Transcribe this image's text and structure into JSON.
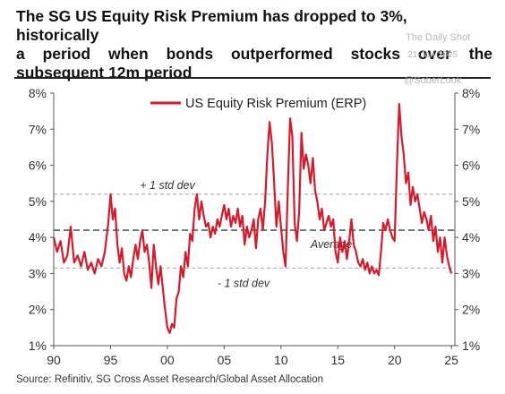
{
  "header": {
    "title_line1": "The SG US Equity Risk Premium has dropped to 3%, historically",
    "title_line2": "a period when bonds outperformed stocks over the",
    "title_line3": "subsequent 12m period"
  },
  "watermarks": {
    "site": "The Daily Shot",
    "date": "21-Jan-2025",
    "handle": "@SoberLook"
  },
  "footer": {
    "source": "Source: Refinitiv, SG Cross Asset Research/Global Asset Allocation"
  },
  "colors": {
    "series": "#d7192a",
    "std_lines": "#b9b9b9",
    "average_line": "#4f6460",
    "axis": "#555555"
  },
  "chart_data": {
    "type": "line",
    "title": "",
    "xlabel": "",
    "ylabel": "",
    "xlim": [
      1990,
      2025.3
    ],
    "ylim": [
      1,
      8
    ],
    "x_ticks": [
      1990,
      1995,
      2000,
      2005,
      2010,
      2015,
      2020,
      2025
    ],
    "x_tick_labels": [
      "90",
      "95",
      "00",
      "05",
      "10",
      "15",
      "20",
      "25"
    ],
    "y_ticks": [
      1,
      2,
      3,
      4,
      5,
      6,
      7,
      8
    ],
    "y_tick_labels": [
      "1%",
      "2%",
      "3%",
      "4%",
      "5%",
      "6%",
      "7%",
      "8%"
    ],
    "grid": false,
    "legend": {
      "placement": "top-center",
      "entries": [
        "US Equity Risk Premium (ERP)"
      ]
    },
    "reference_lines": [
      {
        "label": "+ 1 std dev",
        "value": 5.2,
        "style": "dashed"
      },
      {
        "label": "Average",
        "value": 4.2,
        "style": "dashed"
      },
      {
        "label": "- 1 std dev",
        "value": 3.15,
        "style": "dashed"
      }
    ],
    "series": [
      {
        "name": "US Equity Risk Premium (ERP)",
        "points": [
          [
            1990.0,
            4.0
          ],
          [
            1990.3,
            3.6
          ],
          [
            1990.6,
            3.9
          ],
          [
            1990.9,
            3.3
          ],
          [
            1991.2,
            3.5
          ],
          [
            1991.5,
            4.3
          ],
          [
            1991.8,
            3.3
          ],
          [
            1992.1,
            3.5
          ],
          [
            1992.4,
            3.2
          ],
          [
            1992.7,
            3.6
          ],
          [
            1993.0,
            3.1
          ],
          [
            1993.3,
            3.3
          ],
          [
            1993.6,
            3.0
          ],
          [
            1993.9,
            3.4
          ],
          [
            1994.2,
            3.2
          ],
          [
            1994.5,
            3.6
          ],
          [
            1994.8,
            4.4
          ],
          [
            1995.0,
            5.2
          ],
          [
            1995.2,
            4.5
          ],
          [
            1995.4,
            4.8
          ],
          [
            1995.6,
            3.8
          ],
          [
            1995.8,
            3.3
          ],
          [
            1996.0,
            3.7
          ],
          [
            1996.2,
            3.0
          ],
          [
            1996.4,
            2.8
          ],
          [
            1996.6,
            3.2
          ],
          [
            1996.8,
            2.9
          ],
          [
            1997.0,
            3.4
          ],
          [
            1997.2,
            3.8
          ],
          [
            1997.4,
            3.4
          ],
          [
            1997.6,
            3.9
          ],
          [
            1997.8,
            4.2
          ],
          [
            1998.0,
            3.6
          ],
          [
            1998.2,
            3.8
          ],
          [
            1998.4,
            3.3
          ],
          [
            1998.6,
            2.6
          ],
          [
            1998.8,
            3.8
          ],
          [
            1999.0,
            3.2
          ],
          [
            1999.2,
            2.7
          ],
          [
            1999.4,
            3.2
          ],
          [
            1999.6,
            2.6
          ],
          [
            1999.8,
            2.0
          ],
          [
            2000.0,
            1.5
          ],
          [
            2000.2,
            1.35
          ],
          [
            2000.4,
            1.6
          ],
          [
            2000.6,
            1.5
          ],
          [
            2000.8,
            2.3
          ],
          [
            2001.0,
            2.5
          ],
          [
            2001.2,
            3.2
          ],
          [
            2001.4,
            2.9
          ],
          [
            2001.6,
            3.6
          ],
          [
            2001.8,
            3.2
          ],
          [
            2002.0,
            4.1
          ],
          [
            2002.2,
            3.9
          ],
          [
            2002.4,
            4.8
          ],
          [
            2002.6,
            5.2
          ],
          [
            2002.8,
            4.5
          ],
          [
            2003.0,
            5.0
          ],
          [
            2003.2,
            4.6
          ],
          [
            2003.4,
            4.3
          ],
          [
            2003.6,
            4.4
          ],
          [
            2003.8,
            4.0
          ],
          [
            2004.0,
            4.3
          ],
          [
            2004.2,
            4.1
          ],
          [
            2004.4,
            4.5
          ],
          [
            2004.6,
            4.3
          ],
          [
            2004.8,
            4.6
          ],
          [
            2005.0,
            4.9
          ],
          [
            2005.2,
            4.5
          ],
          [
            2005.4,
            4.8
          ],
          [
            2005.6,
            4.3
          ],
          [
            2005.8,
            4.6
          ],
          [
            2006.0,
            4.4
          ],
          [
            2006.2,
            4.8
          ],
          [
            2006.4,
            4.3
          ],
          [
            2006.6,
            4.6
          ],
          [
            2006.8,
            3.8
          ],
          [
            2007.0,
            4.3
          ],
          [
            2007.2,
            4.0
          ],
          [
            2007.4,
            4.2
          ],
          [
            2007.6,
            4.5
          ],
          [
            2007.8,
            3.7
          ],
          [
            2008.0,
            4.5
          ],
          [
            2008.2,
            4.8
          ],
          [
            2008.4,
            4.2
          ],
          [
            2008.6,
            5.0
          ],
          [
            2008.8,
            6.3
          ],
          [
            2009.0,
            7.2
          ],
          [
            2009.2,
            6.6
          ],
          [
            2009.4,
            5.5
          ],
          [
            2009.6,
            4.3
          ],
          [
            2009.8,
            5.0
          ],
          [
            2010.0,
            4.3
          ],
          [
            2010.2,
            3.6
          ],
          [
            2010.4,
            3.2
          ],
          [
            2010.6,
            5.3
          ],
          [
            2010.8,
            7.3
          ],
          [
            2011.0,
            6.8
          ],
          [
            2011.2,
            4.4
          ],
          [
            2011.4,
            3.9
          ],
          [
            2011.6,
            4.7
          ],
          [
            2011.8,
            6.9
          ],
          [
            2012.0,
            5.9
          ],
          [
            2012.2,
            6.3
          ],
          [
            2012.4,
            6.0
          ],
          [
            2012.6,
            5.5
          ],
          [
            2012.8,
            6.2
          ],
          [
            2013.0,
            5.3
          ],
          [
            2013.2,
            5.0
          ],
          [
            2013.4,
            4.5
          ],
          [
            2013.6,
            4.8
          ],
          [
            2013.8,
            4.2
          ],
          [
            2014.0,
            4.4
          ],
          [
            2014.2,
            4.6
          ],
          [
            2014.4,
            4.3
          ],
          [
            2014.6,
            4.5
          ],
          [
            2014.8,
            3.6
          ],
          [
            2015.0,
            3.3
          ],
          [
            2015.2,
            4.0
          ],
          [
            2015.4,
            3.6
          ],
          [
            2015.6,
            3.9
          ],
          [
            2015.8,
            3.4
          ],
          [
            2016.0,
            3.9
          ],
          [
            2016.2,
            4.5
          ],
          [
            2016.4,
            3.8
          ],
          [
            2016.6,
            3.6
          ],
          [
            2016.8,
            3.3
          ],
          [
            2017.0,
            3.2
          ],
          [
            2017.2,
            3.4
          ],
          [
            2017.4,
            3.1
          ],
          [
            2017.6,
            3.3
          ],
          [
            2017.8,
            3.0
          ],
          [
            2018.0,
            3.2
          ],
          [
            2018.2,
            3.0
          ],
          [
            2018.4,
            3.1
          ],
          [
            2018.6,
            2.95
          ],
          [
            2018.8,
            3.6
          ],
          [
            2019.0,
            4.4
          ],
          [
            2019.2,
            4.2
          ],
          [
            2019.4,
            4.5
          ],
          [
            2019.6,
            4.2
          ],
          [
            2019.8,
            4.0
          ],
          [
            2020.0,
            3.9
          ],
          [
            2020.2,
            6.0
          ],
          [
            2020.4,
            7.7
          ],
          [
            2020.6,
            6.8
          ],
          [
            2020.8,
            6.3
          ],
          [
            2021.0,
            5.5
          ],
          [
            2021.2,
            5.8
          ],
          [
            2021.4,
            4.9
          ],
          [
            2021.6,
            5.4
          ],
          [
            2021.8,
            5.0
          ],
          [
            2022.0,
            5.2
          ],
          [
            2022.2,
            4.8
          ],
          [
            2022.4,
            4.4
          ],
          [
            2022.6,
            4.7
          ],
          [
            2022.8,
            4.5
          ],
          [
            2023.0,
            4.2
          ],
          [
            2023.2,
            4.6
          ],
          [
            2023.4,
            3.9
          ],
          [
            2023.6,
            4.3
          ],
          [
            2023.8,
            3.6
          ],
          [
            2024.0,
            4.0
          ],
          [
            2024.2,
            3.3
          ],
          [
            2024.4,
            4.0
          ],
          [
            2024.6,
            3.5
          ],
          [
            2024.8,
            3.2
          ],
          [
            2025.0,
            3.0
          ]
        ]
      }
    ]
  }
}
